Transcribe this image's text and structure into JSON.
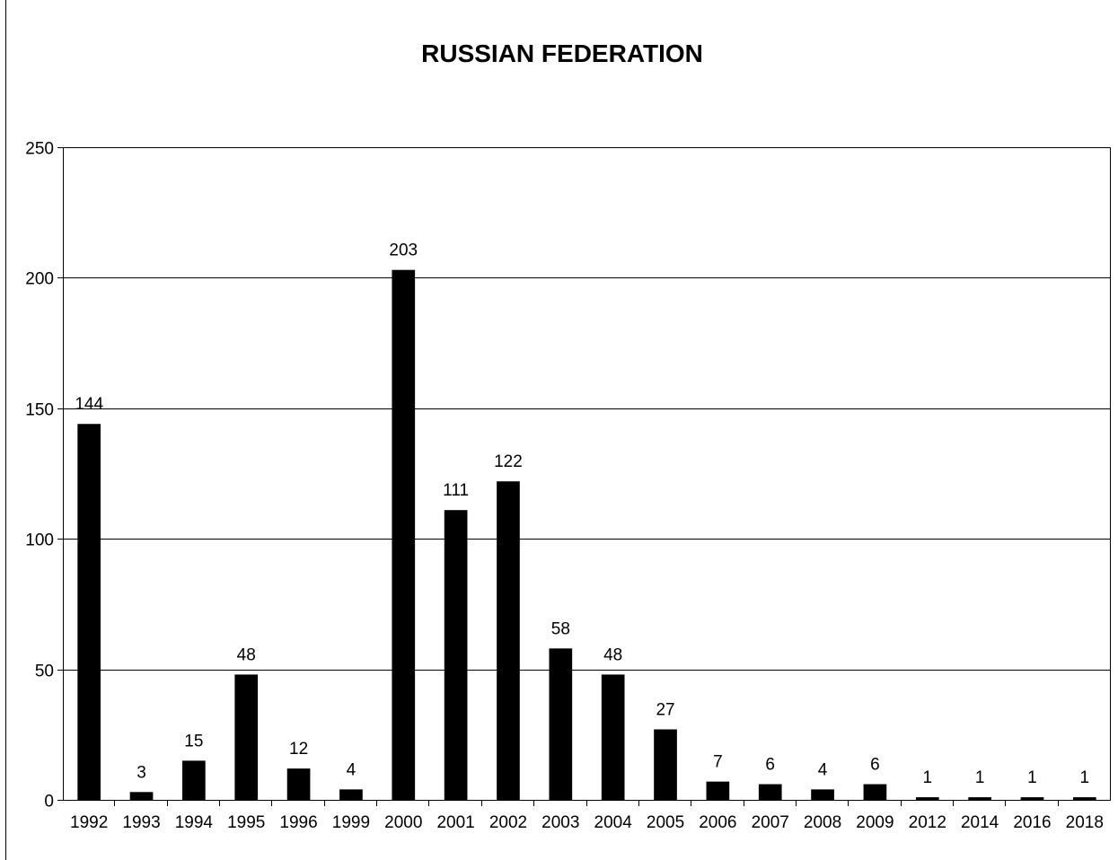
{
  "chart_data": {
    "type": "bar",
    "title": "RUSSIAN FEDERATION",
    "categories": [
      "1992",
      "1993",
      "1994",
      "1995",
      "1996",
      "1999",
      "2000",
      "2001",
      "2002",
      "2003",
      "2004",
      "2005",
      "2006",
      "2007",
      "2008",
      "2009",
      "2012",
      "2014",
      "2016",
      "2018"
    ],
    "values": [
      144,
      3,
      15,
      48,
      12,
      4,
      203,
      111,
      122,
      58,
      48,
      27,
      7,
      6,
      4,
      6,
      1,
      1,
      1,
      1
    ],
    "data_labels": [
      "144",
      "3",
      "15",
      "48",
      "12",
      "4",
      "203",
      "111",
      "122",
      "58",
      "48",
      "27",
      "7",
      "6",
      "4",
      "6",
      "1",
      "1",
      "1",
      "1"
    ],
    "ylim": [
      0,
      250
    ],
    "yticks": [
      "0",
      "50",
      "100",
      "150",
      "200",
      "250"
    ],
    "grid": true,
    "bar_color": "#000000",
    "legend": "none"
  }
}
